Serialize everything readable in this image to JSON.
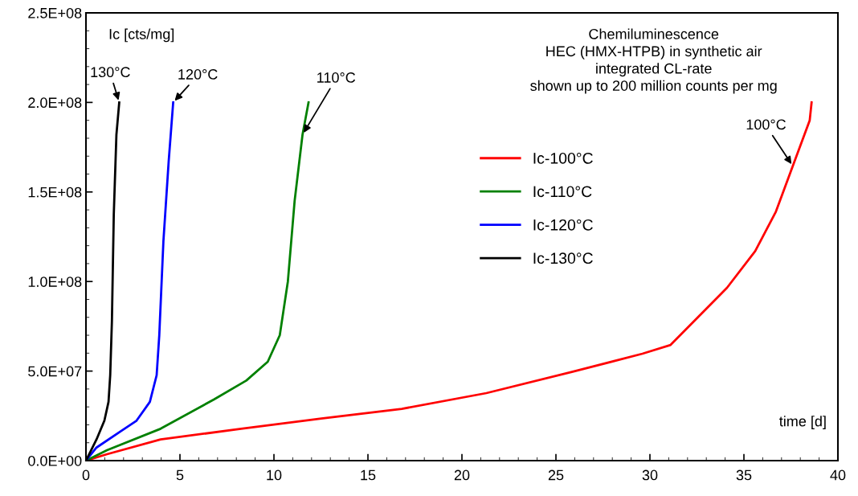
{
  "chart_data": {
    "type": "line",
    "title": "Chemiluminescence\nHEC (HMX-HTPB) in synthetic air\nintegrated CL-rate\nshown up to 200 million counts per mg",
    "xlabel": "time [d]",
    "ylabel": "Ic [cts/mg]",
    "series": [
      {
        "name": "Ic-100°C",
        "color": "#ff0000",
        "x": [
          0,
          1.12,
          3.97,
          8.25,
          12.52,
          16.8,
          21.3,
          25.85,
          29.6,
          31.1,
          32.6,
          34.1,
          35.6,
          36.7,
          37.6,
          38.5,
          38.6
        ],
        "values": [
          0,
          3600000,
          11800000,
          17800000,
          23500000,
          28900000,
          37700000,
          49500000,
          59700000,
          64600000,
          80600000,
          96500000,
          117000000,
          139000000,
          164500000,
          190000000,
          200000000
        ]
      },
      {
        "name": "Ic-110°C",
        "color": "#008000",
        "x": [
          0,
          1.12,
          3.97,
          6.82,
          8.53,
          9.67,
          10.31,
          10.74,
          11.1,
          11.52,
          11.84
        ],
        "values": [
          0,
          5800000,
          17800000,
          34200000,
          44700000,
          55200000,
          70000000,
          100000000,
          145000000,
          182000000,
          200000000
        ]
      },
      {
        "name": "Ic-120°C",
        "color": "#0000ff",
        "x": [
          0,
          0.56,
          1.84,
          2.69,
          3.4,
          3.76,
          3.9,
          4.12,
          4.4,
          4.64
        ],
        "values": [
          0,
          7300000,
          16300000,
          22300000,
          32800000,
          47700000,
          70000000,
          122500000,
          167000000,
          200000000
        ]
      },
      {
        "name": "Ic-130°C",
        "color": "#000000",
        "x": [
          0,
          0.56,
          0.98,
          1.2,
          1.29,
          1.38,
          1.48,
          1.62,
          1.77
        ],
        "values": [
          0,
          11800000,
          22300000,
          32800000,
          47700000,
          77700000,
          137500000,
          182000000,
          200000000
        ]
      }
    ],
    "annotations": [
      {
        "text": "130°C",
        "x": 1.77,
        "y": 200000000
      },
      {
        "text": "120°C",
        "x": 4.64,
        "y": 200000000
      },
      {
        "text": "110°C",
        "x": 11.52,
        "y": 182000000
      },
      {
        "text": "100°C",
        "x": 37.6,
        "y": 164500000
      }
    ],
    "xlim": [
      0,
      40
    ],
    "xticks": [
      0,
      5,
      10,
      15,
      20,
      25,
      30,
      35,
      40
    ],
    "ylim": [
      0,
      250000000
    ],
    "yticks": [
      {
        "value": 0,
        "label": "0.0E+00"
      },
      {
        "value": 50000000,
        "label": "5.0E+07"
      },
      {
        "value": 100000000,
        "label": "1.0E+08"
      },
      {
        "value": 150000000,
        "label": "1.5E+08"
      },
      {
        "value": 200000000,
        "label": "2.0E+08"
      },
      {
        "value": 250000000,
        "label": "2.5E+08"
      }
    ],
    "grid": false,
    "legend": "top",
    "marker": "none",
    "line_style": "solid"
  }
}
